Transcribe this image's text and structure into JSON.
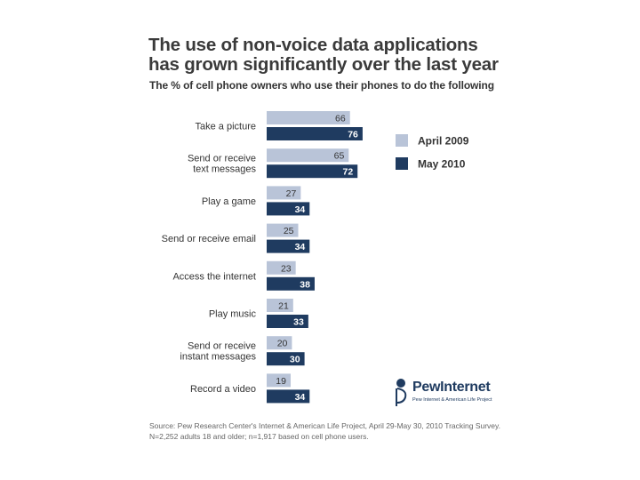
{
  "chart_data": {
    "type": "bar",
    "orientation": "horizontal",
    "title": "The use of non-voice data applications has grown significantly over the last year",
    "title_lines": [
      "The use of non-voice data applications",
      "has grown significantly over the last year"
    ],
    "subtitle": "The % of cell phone owners who use their phones to do the following",
    "categories": [
      [
        "Take a picture"
      ],
      [
        "Send or receive",
        "text messages"
      ],
      [
        "Play a game"
      ],
      [
        "Send or receive email"
      ],
      [
        "Access the internet"
      ],
      [
        "Play music"
      ],
      [
        "Send or receive",
        "instant messages"
      ],
      [
        "Record a video"
      ]
    ],
    "series": [
      {
        "name": "April 2009",
        "color": "#b9c4d8",
        "label_color": "#333333",
        "values": [
          66,
          65,
          27,
          25,
          23,
          21,
          20,
          19
        ]
      },
      {
        "name": "May 2010",
        "color": "#1f3b60",
        "label_color": "#ffffff",
        "values": [
          76,
          72,
          34,
          34,
          38,
          33,
          30,
          34
        ]
      }
    ],
    "legend_position": "top-right",
    "xlim": [
      0,
      100
    ],
    "grid": false
  },
  "source": {
    "line1": "Source: Pew Research Center's Internet & American Life Project, April 29-May 30, 2010 Tracking Survey.",
    "line2": "N=2,252 adults 18 and older; n=1,917 based on cell phone users."
  },
  "logo": {
    "name": "PewInternet",
    "tagline": "Pew Internet & American Life Project"
  }
}
